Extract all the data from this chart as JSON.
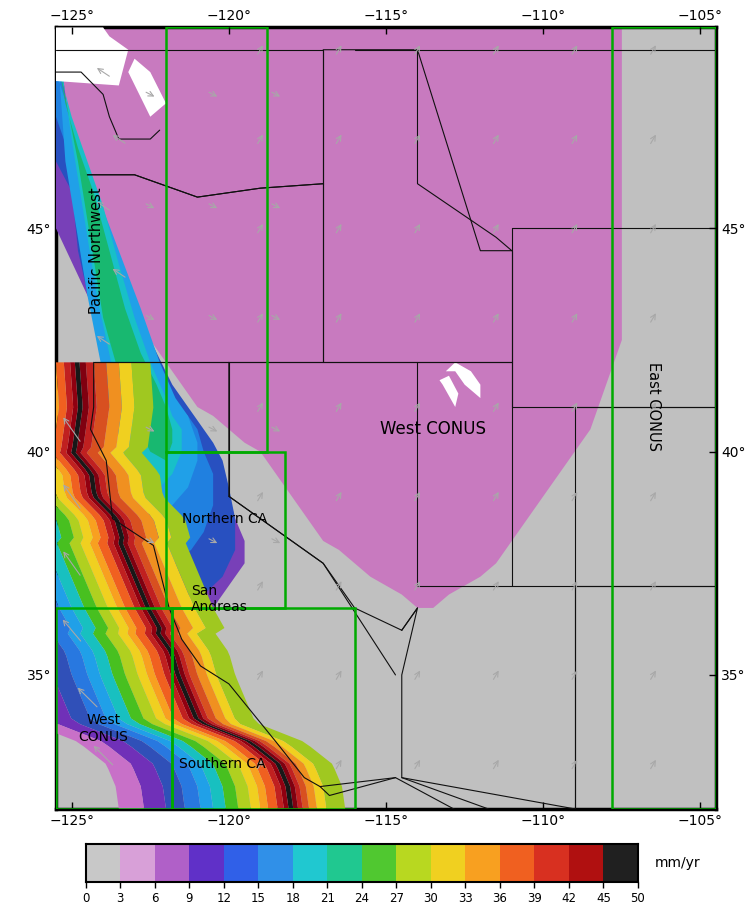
{
  "lon_min": -125.5,
  "lon_max": -104.5,
  "lat_min": 32.0,
  "lat_max": 49.5,
  "lon_ticks": [
    -125,
    -120,
    -115,
    -110,
    -105
  ],
  "lat_ticks": [
    35,
    40,
    45
  ],
  "colorbar_values": [
    0,
    3,
    6,
    9,
    12,
    15,
    18,
    21,
    24,
    27,
    30,
    33,
    36,
    39,
    42,
    45,
    50
  ],
  "colorbar_colors": [
    "#c8c8c8",
    "#d8a0d8",
    "#b060c8",
    "#6030c8",
    "#3060e8",
    "#3090e8",
    "#20c8d0",
    "#20c890",
    "#50c830",
    "#b8d820",
    "#f0d020",
    "#f8a020",
    "#f06020",
    "#d83020",
    "#b01010",
    "#800010",
    "#202020"
  ],
  "colorbar_label": "mm/yr",
  "bg_gray": "#c0c0c0",
  "bg_pink": "#c87abf",
  "border_color": "black",
  "green_color": "#00aa00",
  "tick_label_size": 10
}
